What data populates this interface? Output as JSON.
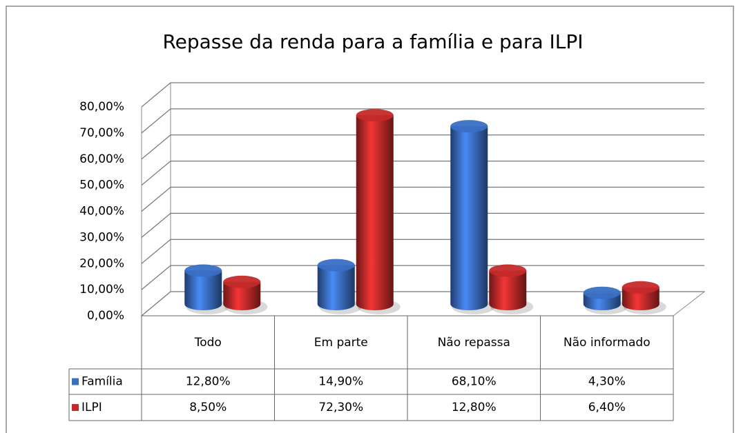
{
  "chart_data": {
    "type": "bar3d",
    "title": "Repasse da renda para a família e para ILPI",
    "categories": [
      "Todo",
      "Em parte",
      "Não repassa",
      "Não informado"
    ],
    "series": [
      {
        "name": "Família",
        "color": "#3a6fc4",
        "values": [
          12.8,
          14.9,
          68.1,
          4.3
        ],
        "value_labels": [
          "12,80%",
          "14,90%",
          "68,10%",
          "4,30%"
        ]
      },
      {
        "name": "ILPI",
        "color": "#c42a2a",
        "values": [
          8.5,
          72.3,
          12.8,
          6.4
        ],
        "value_labels": [
          "8,50%",
          "72,30%",
          "12,80%",
          "6,40%"
        ]
      }
    ],
    "ylim": [
      0,
      80
    ],
    "yticks": [
      {
        "value": 0,
        "label": "0,00%"
      },
      {
        "value": 10,
        "label": "10,00%"
      },
      {
        "value": 20,
        "label": "20,00%"
      },
      {
        "value": 30,
        "label": "30,00%"
      },
      {
        "value": 40,
        "label": "40,00%"
      },
      {
        "value": 50,
        "label": "50,00%"
      },
      {
        "value": 60,
        "label": "60,00%"
      },
      {
        "value": 70,
        "label": "70,00%"
      },
      {
        "value": 80,
        "label": "80,00%"
      }
    ],
    "grid": true
  }
}
